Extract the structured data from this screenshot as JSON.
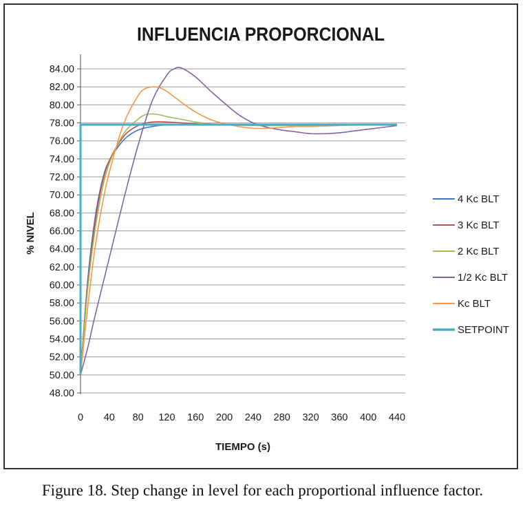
{
  "caption": "Figure 18. Step change in level for each proportional influence factor.",
  "chart_data": {
    "type": "line",
    "title": "INFLUENCIA PROPORCIONAL",
    "xlabel": "TIEMPO (s)",
    "ylabel": "% NIVEL",
    "xlim": [
      0,
      440
    ],
    "ylim": [
      48,
      85
    ],
    "x_ticks": [
      0,
      40,
      80,
      120,
      160,
      200,
      240,
      280,
      320,
      360,
      400,
      440
    ],
    "y_ticks": [
      48,
      50,
      52,
      54,
      56,
      58,
      60,
      62,
      64,
      66,
      68,
      70,
      72,
      74,
      76,
      78,
      80,
      82,
      84
    ],
    "y_tick_labels": [
      "48.00",
      "50.00",
      "52.00",
      "54.00",
      "56.00",
      "58.00",
      "60.00",
      "62.00",
      "64.00",
      "66.00",
      "68.00",
      "70.00",
      "72.00",
      "74.00",
      "76.00",
      "78.00",
      "80.00",
      "82.00",
      "84.00"
    ],
    "grid": true,
    "legend": "right",
    "series": [
      {
        "name": "4 Kc BLT",
        "color": "#4472c4",
        "width": 1.6,
        "x": [
          0,
          10,
          20,
          30,
          40,
          60,
          80,
          100,
          120,
          140,
          160,
          200,
          240,
          280,
          320,
          360,
          400,
          440
        ],
        "y": [
          50.0,
          60.5,
          67.3,
          71.5,
          73.8,
          76.1,
          77.2,
          77.6,
          77.8,
          77.8,
          77.8,
          77.8,
          77.8,
          77.8,
          77.8,
          77.8,
          77.8,
          77.8
        ]
      },
      {
        "name": "3 Kc BLT",
        "color": "#c0504d",
        "width": 1.6,
        "x": [
          0,
          10,
          20,
          30,
          40,
          60,
          80,
          100,
          120,
          140,
          160,
          200,
          240,
          280,
          320,
          360,
          400,
          440
        ],
        "y": [
          50.0,
          60.0,
          66.8,
          71.2,
          73.8,
          76.5,
          77.7,
          78.1,
          78.1,
          78.0,
          77.9,
          77.8,
          77.8,
          77.8,
          77.8,
          77.8,
          77.8,
          77.8
        ]
      },
      {
        "name": "2 Kc BLT",
        "color": "#9bbb59",
        "width": 1.6,
        "x": [
          0,
          10,
          20,
          30,
          40,
          60,
          80,
          90,
          100,
          110,
          120,
          140,
          160,
          180,
          200,
          240,
          280,
          320,
          360,
          400,
          440
        ],
        "y": [
          50.0,
          59.5,
          66.0,
          70.5,
          73.5,
          76.8,
          78.4,
          78.9,
          79.0,
          78.9,
          78.7,
          78.4,
          78.1,
          77.9,
          77.8,
          77.7,
          77.7,
          77.7,
          77.8,
          77.8,
          77.8
        ]
      },
      {
        "name": "1/2 Kc BLT",
        "color": "#8064a2",
        "width": 1.6,
        "x": [
          0,
          10,
          20,
          40,
          60,
          80,
          100,
          120,
          130,
          140,
          160,
          180,
          200,
          220,
          240,
          260,
          280,
          300,
          320,
          340,
          360,
          380,
          400,
          420,
          440
        ],
        "y": [
          50.0,
          53.0,
          56.5,
          63.0,
          69.5,
          75.5,
          80.5,
          83.3,
          84.0,
          84.1,
          83.1,
          81.6,
          80.2,
          78.9,
          78.0,
          77.5,
          77.2,
          77.0,
          76.8,
          76.8,
          76.9,
          77.1,
          77.3,
          77.5,
          77.7
        ]
      },
      {
        "name": "Kc BLT",
        "color": "#f79646",
        "width": 1.6,
        "x": [
          0,
          10,
          20,
          30,
          40,
          60,
          80,
          90,
          100,
          110,
          120,
          140,
          160,
          180,
          200,
          220,
          240,
          260,
          280,
          300,
          320,
          360,
          400,
          440
        ],
        "y": [
          50.0,
          57.5,
          64.0,
          68.8,
          72.5,
          77.9,
          81.0,
          81.8,
          82.0,
          81.9,
          81.5,
          80.3,
          79.2,
          78.4,
          77.9,
          77.6,
          77.4,
          77.4,
          77.5,
          77.6,
          77.6,
          77.7,
          77.8,
          77.8
        ]
      },
      {
        "name": "SETPOINT",
        "color": "#4bacc6",
        "width": 3,
        "x": [
          0,
          0,
          440
        ],
        "y": [
          50.0,
          77.8,
          77.8
        ]
      }
    ]
  }
}
